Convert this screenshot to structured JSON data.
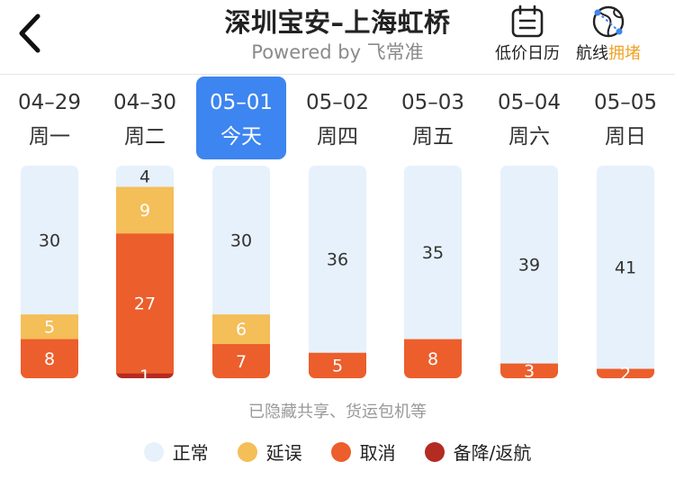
{
  "header": {
    "title": "深圳宝安–上海虹桥",
    "subtitle": "Powered by 飞常准",
    "calendar_label": "低价日历",
    "route_label_prefix": "航线",
    "route_label_highlight": "拥堵",
    "back_icon": "chevron-left-icon",
    "calendar_icon": "calendar-icon",
    "route_icon": "globe-route-icon"
  },
  "dates": [
    {
      "date": "04–29",
      "weekday": "周一",
      "selected": false
    },
    {
      "date": "04–30",
      "weekday": "周二",
      "selected": false
    },
    {
      "date": "05–01",
      "weekday": "今天",
      "selected": true
    },
    {
      "date": "05–02",
      "weekday": "周四",
      "selected": false
    },
    {
      "date": "05–03",
      "weekday": "周五",
      "selected": false
    },
    {
      "date": "05–04",
      "weekday": "周六",
      "selected": false
    },
    {
      "date": "05–05",
      "weekday": "周日",
      "selected": false
    }
  ],
  "note": "已隐藏共享、货运包机等",
  "legend": [
    {
      "label": "正常",
      "color": "#e6f1fb"
    },
    {
      "label": "延误",
      "color": "#f4be58"
    },
    {
      "label": "取消",
      "color": "#ec5e2c"
    },
    {
      "label": "备降/返航",
      "color": "#b42b22"
    }
  ],
  "colors": {
    "accent": "#3d85f0",
    "highlight": "#f0a328"
  },
  "chart_data": {
    "type": "bar",
    "stacked": true,
    "categories": [
      "04–29",
      "04–30",
      "05–01",
      "05–02",
      "05–03",
      "05–04",
      "05–05"
    ],
    "series": [
      {
        "name": "备降/返航",
        "color": "#b42b22",
        "values": [
          0,
          1,
          0,
          0,
          0,
          0,
          0
        ]
      },
      {
        "name": "取消",
        "color": "#ec5e2c",
        "values": [
          8,
          27,
          7,
          5,
          8,
          3,
          2
        ]
      },
      {
        "name": "延误",
        "color": "#f4be58",
        "values": [
          5,
          9,
          6,
          0,
          0,
          0,
          0
        ]
      },
      {
        "name": "正常",
        "color": "#e6f1fb",
        "values": [
          30,
          4,
          30,
          36,
          35,
          39,
          41
        ]
      }
    ]
  }
}
